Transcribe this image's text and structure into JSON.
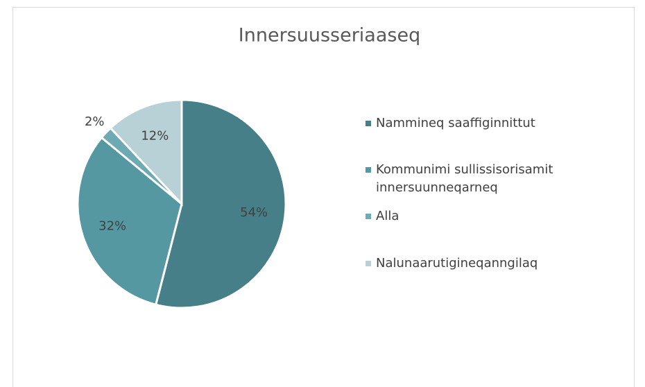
{
  "chart_data": {
    "type": "pie",
    "title": "Innersuusseriaaseq",
    "categories": [
      "Nammineq saaffiginnittut",
      "Kommunimi sullissisorisamit innersuunneqarneq",
      "Alla",
      "Nalunaarutigineqanngilaq"
    ],
    "values": [
      54,
      32,
      2,
      12
    ],
    "value_labels": [
      "54%",
      "32%",
      "2%",
      "12%"
    ],
    "colors": [
      "#467f88",
      "#5598a2",
      "#6eaab4",
      "#b7d1d7"
    ],
    "legend": "right"
  }
}
